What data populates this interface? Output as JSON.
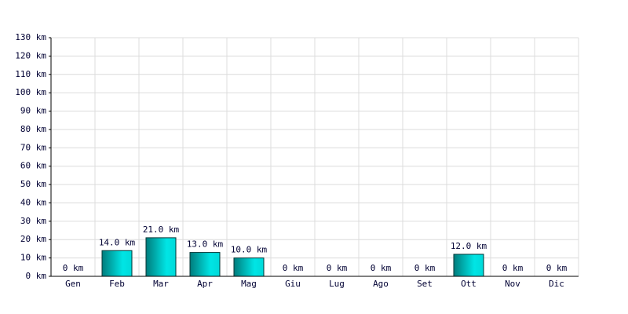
{
  "chart_data": {
    "type": "bar",
    "categories": [
      "Gen",
      "Feb",
      "Mar",
      "Apr",
      "Mag",
      "Giu",
      "Lug",
      "Ago",
      "Set",
      "Ott",
      "Nov",
      "Dic"
    ],
    "values": [
      0,
      14,
      21,
      13,
      10,
      0,
      0,
      0,
      0,
      12,
      0,
      0
    ],
    "value_labels": [
      "0 km",
      "14.0 km",
      "21.0 km",
      "13.0 km",
      "10.0 km",
      "0 km",
      "0 km",
      "0 km",
      "0 km",
      "12.0 km",
      "0 km",
      "0 km"
    ],
    "color": "#00e5e5",
    "ylim": [
      0,
      130
    ],
    "yticks": [
      {
        "value": 0,
        "label": "0 km"
      },
      {
        "value": 10,
        "label": "10 km"
      },
      {
        "value": 20,
        "label": "20 km"
      },
      {
        "value": 30,
        "label": "30 km"
      },
      {
        "value": 40,
        "label": "40 km"
      },
      {
        "value": 50,
        "label": "50 km"
      },
      {
        "value": 60,
        "label": "60 km"
      },
      {
        "value": 70,
        "label": "70 km"
      },
      {
        "value": 80,
        "label": "80 km"
      },
      {
        "value": 90,
        "label": "90 km"
      },
      {
        "value": 100,
        "label": "100 km"
      },
      {
        "value": 110,
        "label": "110 km"
      },
      {
        "value": 120,
        "label": "120 km"
      },
      {
        "value": 130,
        "label": "130 km"
      }
    ],
    "grid": true
  }
}
